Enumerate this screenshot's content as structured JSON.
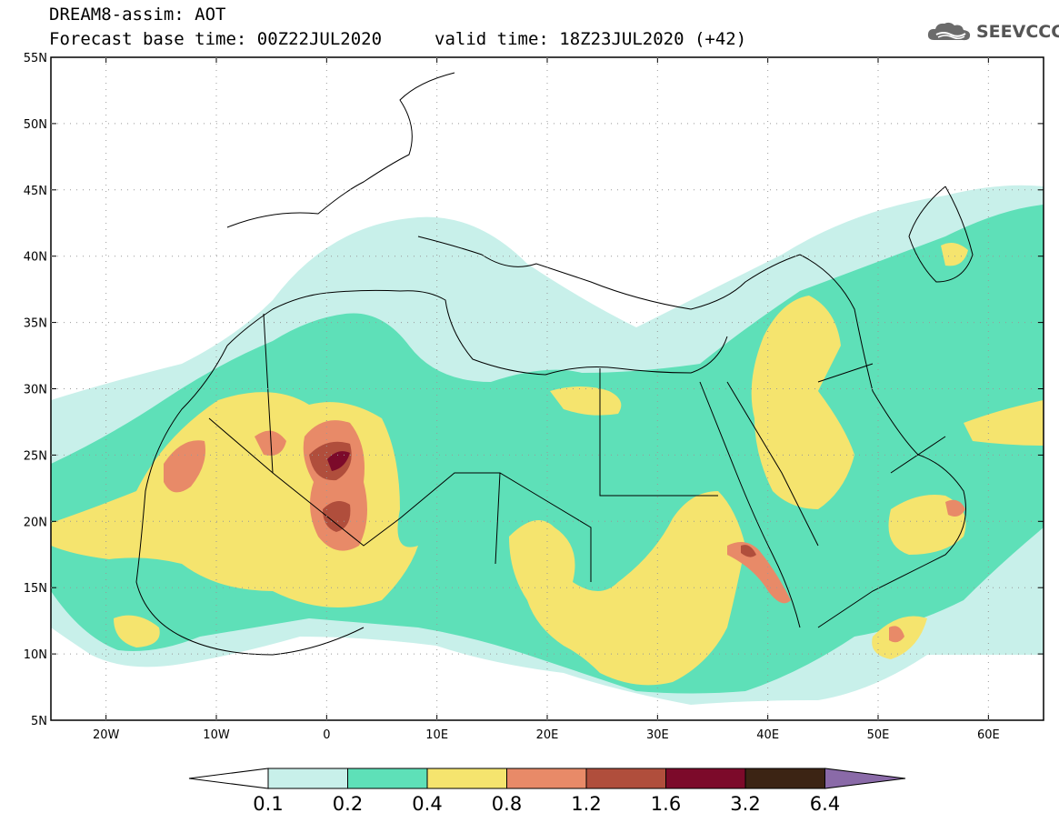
{
  "header": {
    "title": "DREAM8-assim: AOT",
    "base_time": "Forecast base time: 00Z22JUL2020",
    "valid_time": "valid time: 18Z23JUL2020 (+42)"
  },
  "logo": {
    "text": "SEEVCCC",
    "icon": "cloud-icon"
  },
  "map": {
    "lon_range": [
      -25,
      65
    ],
    "lat_range": [
      5,
      55
    ],
    "lat_ticks": [
      "55N",
      "50N",
      "45N",
      "40N",
      "35N",
      "30N",
      "25N",
      "20N",
      "15N",
      "10N",
      "5N"
    ],
    "lon_ticks": [
      "20W",
      "10W",
      "0",
      "10E",
      "20E",
      "30E",
      "40E",
      "50E",
      "60E"
    ]
  },
  "colorbar": {
    "labels": [
      "0.1",
      "0.2",
      "0.4",
      "0.8",
      "1.2",
      "1.6",
      "3.2",
      "6.4"
    ],
    "colors": [
      "#c8f0ea",
      "#5ee0b8",
      "#f5e46e",
      "#e88a68",
      "#b04e3c",
      "#7c0a2a",
      "#3c2414",
      "#8a6aa8"
    ],
    "under_color": "#ffffff",
    "over_color": "#8a6aa8"
  }
}
